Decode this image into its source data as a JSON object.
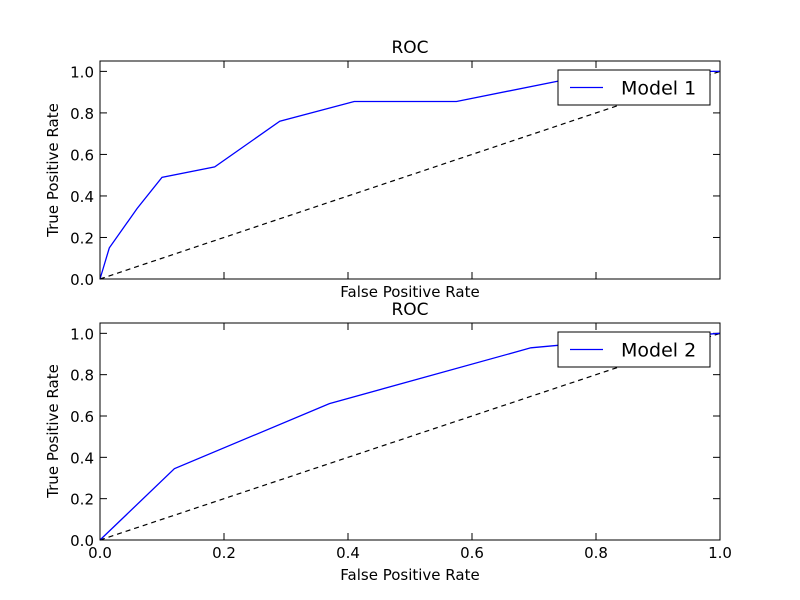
{
  "chart_data": [
    {
      "type": "line",
      "title": "ROC",
      "xlabel": "False Positive Rate",
      "ylabel": "True Positive Rate",
      "xlim": [
        0.0,
        1.0
      ],
      "ylim": [
        0.0,
        1.05
      ],
      "xticks": [
        "0.0",
        "0.2",
        "0.4",
        "0.6",
        "0.8",
        "1.0"
      ],
      "yticks": [
        "0.0",
        "0.2",
        "0.4",
        "0.6",
        "0.8",
        "1.0"
      ],
      "grid": false,
      "legend_position": "top-right",
      "series": [
        {
          "name": "Model 1",
          "color": "#0000ff",
          "x": [
            0.0,
            0.015,
            0.06,
            0.1,
            0.185,
            0.29,
            0.41,
            0.575,
            0.75,
            0.81,
            1.0
          ],
          "y": [
            0.0,
            0.15,
            0.34,
            0.49,
            0.54,
            0.76,
            0.855,
            0.855,
            0.96,
            1.0,
            1.0
          ]
        }
      ],
      "reference_line": {
        "style": "dashed",
        "color": "#000000",
        "x": [
          0.0,
          1.0
        ],
        "y": [
          0.0,
          1.0
        ]
      }
    },
    {
      "type": "line",
      "title": "ROC",
      "xlabel": "False Positive Rate",
      "ylabel": "True Positive Rate",
      "xlim": [
        0.0,
        1.0
      ],
      "ylim": [
        0.0,
        1.05
      ],
      "xticks": [
        "0.0",
        "0.2",
        "0.4",
        "0.6",
        "0.8",
        "1.0"
      ],
      "yticks": [
        "0.0",
        "0.2",
        "0.4",
        "0.6",
        "0.8",
        "1.0"
      ],
      "grid": false,
      "legend_position": "top-right",
      "series": [
        {
          "name": "Model 2",
          "color": "#0000ff",
          "x": [
            0.0,
            0.12,
            0.37,
            0.695,
            0.75,
            1.0
          ],
          "y": [
            0.0,
            0.345,
            0.66,
            0.93,
            0.945,
            1.0
          ]
        }
      ],
      "reference_line": {
        "style": "dashed",
        "color": "#000000",
        "x": [
          0.0,
          1.0
        ],
        "y": [
          0.0,
          1.0
        ]
      }
    }
  ]
}
